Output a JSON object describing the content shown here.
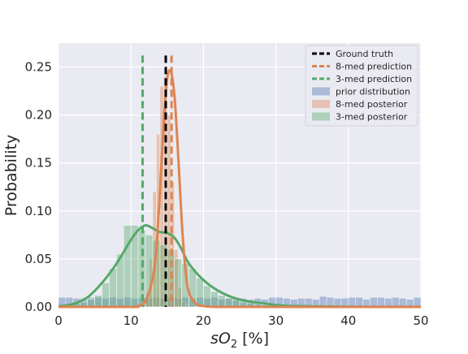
{
  "chart_data": {
    "type": "bar",
    "xlabel": "sO",
    "xlabel_sub": "2",
    "xlabel_unit": " [%]",
    "ylabel": "Probability",
    "xlim": [
      0,
      50
    ],
    "ylim": [
      0,
      0.275
    ],
    "xticks": [
      "0",
      "10",
      "20",
      "30",
      "40",
      "50"
    ],
    "yticks": [
      "0.00",
      "0.05",
      "0.10",
      "0.15",
      "0.20",
      "0.25"
    ],
    "grid": true,
    "legend_position": "top-right",
    "colors": {
      "background": "#eaeaf2",
      "ground_truth": "#000000",
      "med8": "#dd8452",
      "med3": "#55a868",
      "prior": "#4c72b0"
    },
    "vlines": [
      {
        "name": "Ground truth",
        "x": 14.8,
        "color": "#000000"
      },
      {
        "name": "8-med prediction",
        "x": 15.6,
        "color": "#dd8452"
      },
      {
        "name": "3-med prediction",
        "x": 11.6,
        "color": "#55a868"
      }
    ],
    "histograms": [
      {
        "name": "prior distribution",
        "color": "#4c72b0",
        "bin_width": 1,
        "values": [
          0.01,
          0.01,
          0.009,
          0.009,
          0.01,
          0.01,
          0.009,
          0.01,
          0.009,
          0.01,
          0.009,
          0.01,
          0.009,
          0.01,
          0.009,
          0.01,
          0.009,
          0.01,
          0.009,
          0.01,
          0.009,
          0.01,
          0.008,
          0.009,
          0.009,
          0.009,
          0.008,
          0.009,
          0.008,
          0.01,
          0.01,
          0.009,
          0.008,
          0.009,
          0.009,
          0.008,
          0.011,
          0.01,
          0.009,
          0.009,
          0.01,
          0.01,
          0.008,
          0.01,
          0.01,
          0.009,
          0.01,
          0.009,
          0.008,
          0.01
        ]
      },
      {
        "name": "8-med posterior",
        "color": "#dd8452",
        "bin_start": 11,
        "bin_width": 0.5,
        "values": [
          0.002,
          0.005,
          0.015,
          0.05,
          0.12,
          0.18,
          0.23,
          0.24,
          0.2,
          0.13,
          0.06,
          0.02,
          0.005,
          0.002
        ]
      },
      {
        "name": "3-med posterior",
        "color": "#55a868",
        "bin_start": 2,
        "bin_width": 1,
        "values": [
          0.004,
          0.005,
          0.008,
          0.012,
          0.025,
          0.04,
          0.055,
          0.085,
          0.085,
          0.08,
          0.075,
          0.07,
          0.065,
          0.06,
          0.05,
          0.045,
          0.04,
          0.03,
          0.022,
          0.016,
          0.012,
          0.009,
          0.007,
          0.005,
          0.004,
          0.003,
          0.002,
          0.002
        ]
      }
    ],
    "kde": [
      {
        "name": "3-med posterior",
        "color": "#55a868",
        "x": [
          0,
          2,
          4,
          6,
          8,
          10,
          11,
          12,
          13,
          14,
          15,
          16,
          17,
          18,
          20,
          22,
          24,
          26,
          28,
          30,
          32,
          34,
          36,
          40,
          45,
          50
        ],
        "y": [
          0.0005,
          0.003,
          0.01,
          0.025,
          0.045,
          0.07,
          0.08,
          0.085,
          0.082,
          0.078,
          0.077,
          0.072,
          0.06,
          0.045,
          0.028,
          0.017,
          0.01,
          0.006,
          0.004,
          0.002,
          0.001,
          0.0008,
          0.0005,
          0.0002,
          0.0001,
          0.0001
        ]
      },
      {
        "name": "8-med posterior",
        "color": "#dd8452",
        "x": [
          0,
          10,
          11,
          12,
          13,
          13.5,
          14,
          14.5,
          15,
          15.5,
          16,
          16.5,
          17,
          17.5,
          18,
          19,
          20,
          22,
          30,
          50
        ],
        "y": [
          0,
          0,
          0.001,
          0.006,
          0.03,
          0.06,
          0.12,
          0.19,
          0.238,
          0.245,
          0.22,
          0.16,
          0.09,
          0.04,
          0.015,
          0.003,
          0.001,
          0,
          0,
          0
        ]
      }
    ],
    "legend": [
      {
        "label": "Ground truth",
        "kind": "line",
        "color": "#000000"
      },
      {
        "label": "8-med prediction",
        "kind": "line",
        "color": "#dd8452"
      },
      {
        "label": "3-med prediction",
        "kind": "line",
        "color": "#55a868"
      },
      {
        "label": "prior distribution",
        "kind": "patch",
        "color": "#4c72b0"
      },
      {
        "label": "8-med posterior",
        "kind": "patch",
        "color": "#dd8452"
      },
      {
        "label": "3-med posterior",
        "kind": "patch",
        "color": "#55a868"
      }
    ]
  }
}
